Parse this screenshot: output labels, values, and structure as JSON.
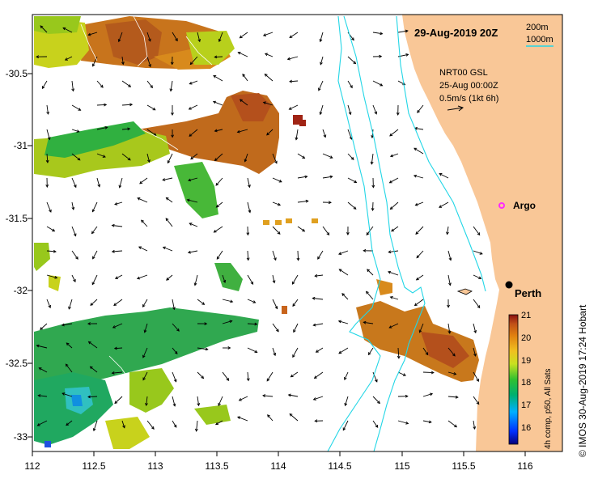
{
  "title": "29-Aug-2019 20Z",
  "legend": {
    "contour_200": "200m",
    "contour_1000": "1000m",
    "current_source": "NRT00 GSL",
    "current_date": "25-Aug 00:00Z",
    "current_scale": "0.5m/s (1kt 6h)"
  },
  "places": {
    "argo": "Argo",
    "perth": "Perth"
  },
  "axes": {
    "x_ticks": [
      "112",
      "112.5",
      "113",
      "113.5",
      "114",
      "114.5",
      "115",
      "115.5",
      "116"
    ],
    "y_ticks": [
      "-30.5",
      "-31",
      "-31.5",
      "-32",
      "-32.5",
      "-33"
    ],
    "lon_range": [
      112,
      116.3
    ],
    "lat_range": [
      -33.1,
      -30.05
    ]
  },
  "colorbar": {
    "ticks": [
      "21",
      "20",
      "19",
      "18",
      "17",
      "16"
    ],
    "range": [
      15.5,
      21
    ],
    "label": "4h comp, p50, All Sats"
  },
  "credit": "© IMOS 30-Aug-2019 17:24 Hobart",
  "colors": {
    "land": "#f9c797",
    "contour": "#22d6e6",
    "argo": "#ff2bff",
    "dark_orange": "#b4501c"
  }
}
